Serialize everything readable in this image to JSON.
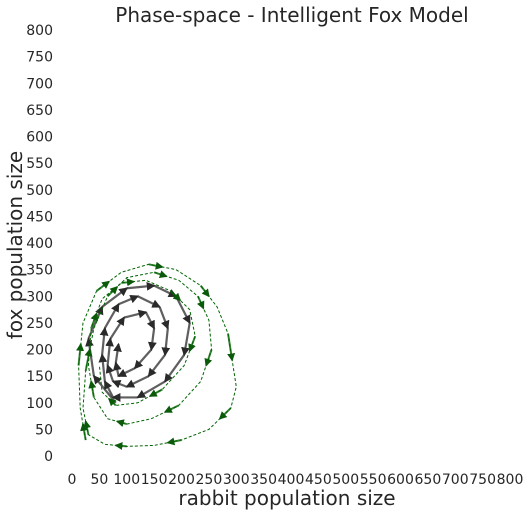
{
  "chart_data": {
    "type": "line",
    "title": "Phase-space - Intelligent Fox Model",
    "xlabel": "rabbit population size",
    "ylabel": "fox population size",
    "xlim": [
      0,
      800
    ],
    "ylim": [
      0,
      800
    ],
    "xticks": [
      0,
      50,
      100,
      150,
      200,
      250,
      300,
      350,
      400,
      450,
      500,
      550,
      600,
      650,
      700,
      750,
      800
    ],
    "yticks": [
      0,
      50,
      100,
      150,
      200,
      250,
      300,
      350,
      400,
      450,
      500,
      550,
      600,
      650,
      700,
      750,
      800
    ],
    "grid": false,
    "colors": {
      "trajectory": "#2a2a2a",
      "envelope": "#006400"
    },
    "series": [
      {
        "style": "quiver",
        "x": [
          80,
          40,
          30,
          55,
          100,
          150,
          190,
          215,
          205,
          170,
          120,
          75,
          60,
          55,
          60,
          85,
          120,
          160,
          175,
          170,
          140,
          100,
          75,
          65,
          70,
          95,
          135,
          150,
          145,
          115,
          85,
          80,
          85
        ],
        "y": [
          100,
          150,
          220,
          280,
          315,
          320,
          300,
          250,
          190,
          140,
          110,
          110,
          140,
          190,
          240,
          285,
          300,
          280,
          240,
          190,
          150,
          130,
          140,
          170,
          220,
          260,
          270,
          240,
          200,
          165,
          150,
          175,
          210
        ]
      },
      {
        "style": "dashed",
        "x": [
          25,
          15,
          12,
          20,
          45,
          90,
          140,
          190,
          235,
          265,
          285,
          300,
          290,
          250,
          200,
          150,
          100,
          60,
          30,
          20,
          25,
          40,
          65,
          100,
          150,
          195,
          230,
          250,
          255,
          235,
          195,
          145,
          100,
          65,
          40,
          30,
          35,
          55,
          90,
          135,
          180,
          215,
          225,
          205,
          165,
          120,
          80,
          55,
          50
        ],
        "y": [
          30,
          90,
          170,
          250,
          310,
          345,
          360,
          350,
          320,
          280,
          230,
          130,
          90,
          50,
          30,
          20,
          18,
          22,
          40,
          90,
          160,
          240,
          300,
          335,
          345,
          330,
          300,
          255,
          200,
          140,
          95,
          70,
          60,
          70,
          110,
          170,
          240,
          295,
          325,
          330,
          310,
          275,
          225,
          170,
          125,
          100,
          95,
          120,
          170
        ]
      }
    ]
  }
}
